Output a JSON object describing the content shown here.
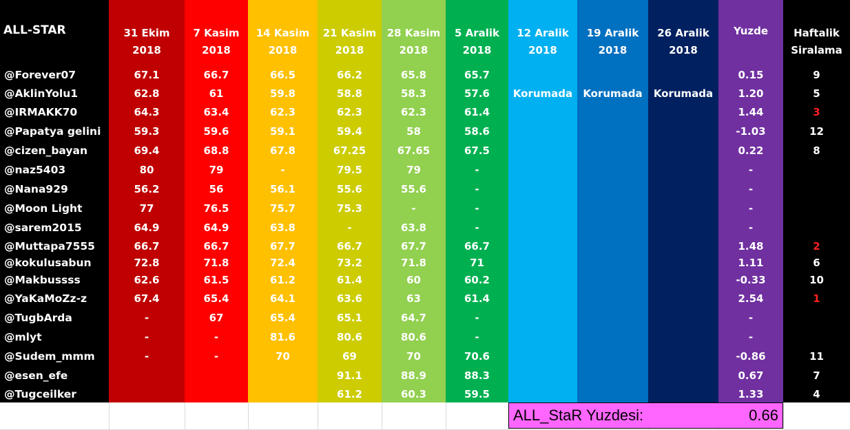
{
  "title": "ALL-STAR",
  "columns": [
    {
      "id": "c1",
      "line1": "31 Ekim",
      "line2": "2018",
      "color": "#c00000"
    },
    {
      "id": "c2",
      "line1": "7 Kasim",
      "line2": "2018",
      "color": "#ff0000"
    },
    {
      "id": "c3",
      "line1": "14 Kasim",
      "line2": "2018",
      "color": "#ffc000"
    },
    {
      "id": "c4",
      "line1": "21 Kasim",
      "line2": "2018",
      "color": "#cccc00"
    },
    {
      "id": "c5",
      "line1": "28 Kasim",
      "line2": "2018",
      "color": "#92d050"
    },
    {
      "id": "c6",
      "line1": "5 Aralik",
      "line2": "2018",
      "color": "#00b050"
    },
    {
      "id": "c7",
      "line1": "12 Aralik",
      "line2": "2018",
      "color": "#00b0f0"
    },
    {
      "id": "c8",
      "line1": "19 Aralik",
      "line2": "2018",
      "color": "#0070c0"
    },
    {
      "id": "c9",
      "line1": "26 Aralik",
      "line2": "2018",
      "color": "#002060"
    },
    {
      "id": "yuzde",
      "line1": "Yuzde",
      "line2": "",
      "color": "#7030a0"
    },
    {
      "id": "rank",
      "line1": "Haftalik",
      "line2": "Siralama",
      "color": "#000000"
    }
  ],
  "protected_label": "Korumada",
  "rows": [
    {
      "name": "@Forever07",
      "v": [
        "67.1",
        "66.7",
        "66.5",
        "66.2",
        "65.8",
        "65.7"
      ],
      "yuzde": "0.15",
      "rank": "9",
      "rank_red": false
    },
    {
      "name": "@AklinYolu1",
      "v": [
        "62.8",
        "61",
        "59.8",
        "58.8",
        "58.3",
        "57.6"
      ],
      "yuzde": "1.20",
      "rank": "5",
      "rank_red": false
    },
    {
      "name": "@IRMAKK70",
      "v": [
        "64.3",
        "63.4",
        "62.3",
        "62.3",
        "62.3",
        "61.4"
      ],
      "yuzde": "1.44",
      "rank": "3",
      "rank_red": true
    },
    {
      "name": "@Papatya gelini",
      "v": [
        "59.3",
        "59.6",
        "59.1",
        "59.4",
        "58",
        "58.6"
      ],
      "yuzde": "-1.03",
      "rank": "12",
      "rank_red": false
    },
    {
      "name": "@cizen_bayan",
      "v": [
        "69.4",
        "68.8",
        "67.8",
        "67.25",
        "67.65",
        "67.5"
      ],
      "yuzde": "0.22",
      "rank": "8",
      "rank_red": false
    },
    {
      "name": "@naz5403",
      "v": [
        "80",
        "79",
        "-",
        "79.5",
        "79",
        "-"
      ],
      "yuzde": "-",
      "rank": "",
      "rank_red": false
    },
    {
      "name": "@Nana929",
      "v": [
        "56.2",
        "56",
        "56.1",
        "55.6",
        "55.6",
        "-"
      ],
      "yuzde": "-",
      "rank": "",
      "rank_red": false
    },
    {
      "name": "@Moon Light",
      "v": [
        "77",
        "76.5",
        "75.7",
        "75.3",
        "-",
        "-"
      ],
      "yuzde": "-",
      "rank": "",
      "rank_red": false
    },
    {
      "name": "@sarem2015",
      "v": [
        "64.9",
        "64.9",
        "63.8",
        "-",
        "63.8",
        "-"
      ],
      "yuzde": "-",
      "rank": "",
      "rank_red": false
    },
    {
      "name": "@Muttapa7555",
      "v": [
        "66.7",
        "66.7",
        "67.7",
        "66.7",
        "67.7",
        "66.7"
      ],
      "yuzde": "1.48",
      "rank": "2",
      "rank_red": true
    },
    {
      "name": "@kokulusabun",
      "v": [
        "72.8",
        "71.8",
        "72.4",
        "73.2",
        "71.8",
        "71"
      ],
      "yuzde": "1.11",
      "rank": "6",
      "rank_red": false
    },
    {
      "name": "@Makbussss",
      "v": [
        "62.6",
        "61.5",
        "61.2",
        "61.4",
        "60",
        "60.2"
      ],
      "yuzde": "-0.33",
      "rank": "10",
      "rank_red": false
    },
    {
      "name": "@YaKaMoZz-z",
      "v": [
        "67.4",
        "65.4",
        "64.1",
        "63.6",
        "63",
        "61.4"
      ],
      "yuzde": "2.54",
      "rank": "1",
      "rank_red": true
    },
    {
      "name": "@TugbArda",
      "v": [
        "-",
        "67",
        "65.4",
        "65.1",
        "64.7",
        "-"
      ],
      "yuzde": "-",
      "rank": "",
      "rank_red": false
    },
    {
      "name": "@mlyt",
      "v": [
        "-",
        "-",
        "81.6",
        "80.6",
        "80.6",
        "-"
      ],
      "yuzde": "-",
      "rank": "",
      "rank_red": false
    },
    {
      "name": "@Sudem_mmm",
      "v": [
        "-",
        "-",
        "70",
        "69",
        "70",
        "70.6"
      ],
      "yuzde": "-0.86",
      "rank": "11",
      "rank_red": false
    },
    {
      "name": "@esen_efe",
      "v": [
        "",
        "",
        "",
        "91.1",
        "88.9",
        "88.3"
      ],
      "yuzde": "0.67",
      "rank": "7",
      "rank_red": false
    },
    {
      "name": "@Tugceilker",
      "v": [
        "",
        "",
        "",
        "61.2",
        "60.3",
        "59.5"
      ],
      "yuzde": "1.33",
      "rank": "4",
      "rank_red": false
    }
  ],
  "summary": {
    "label": "ALL_StaR Yuzdesi:",
    "value": "0.66"
  }
}
